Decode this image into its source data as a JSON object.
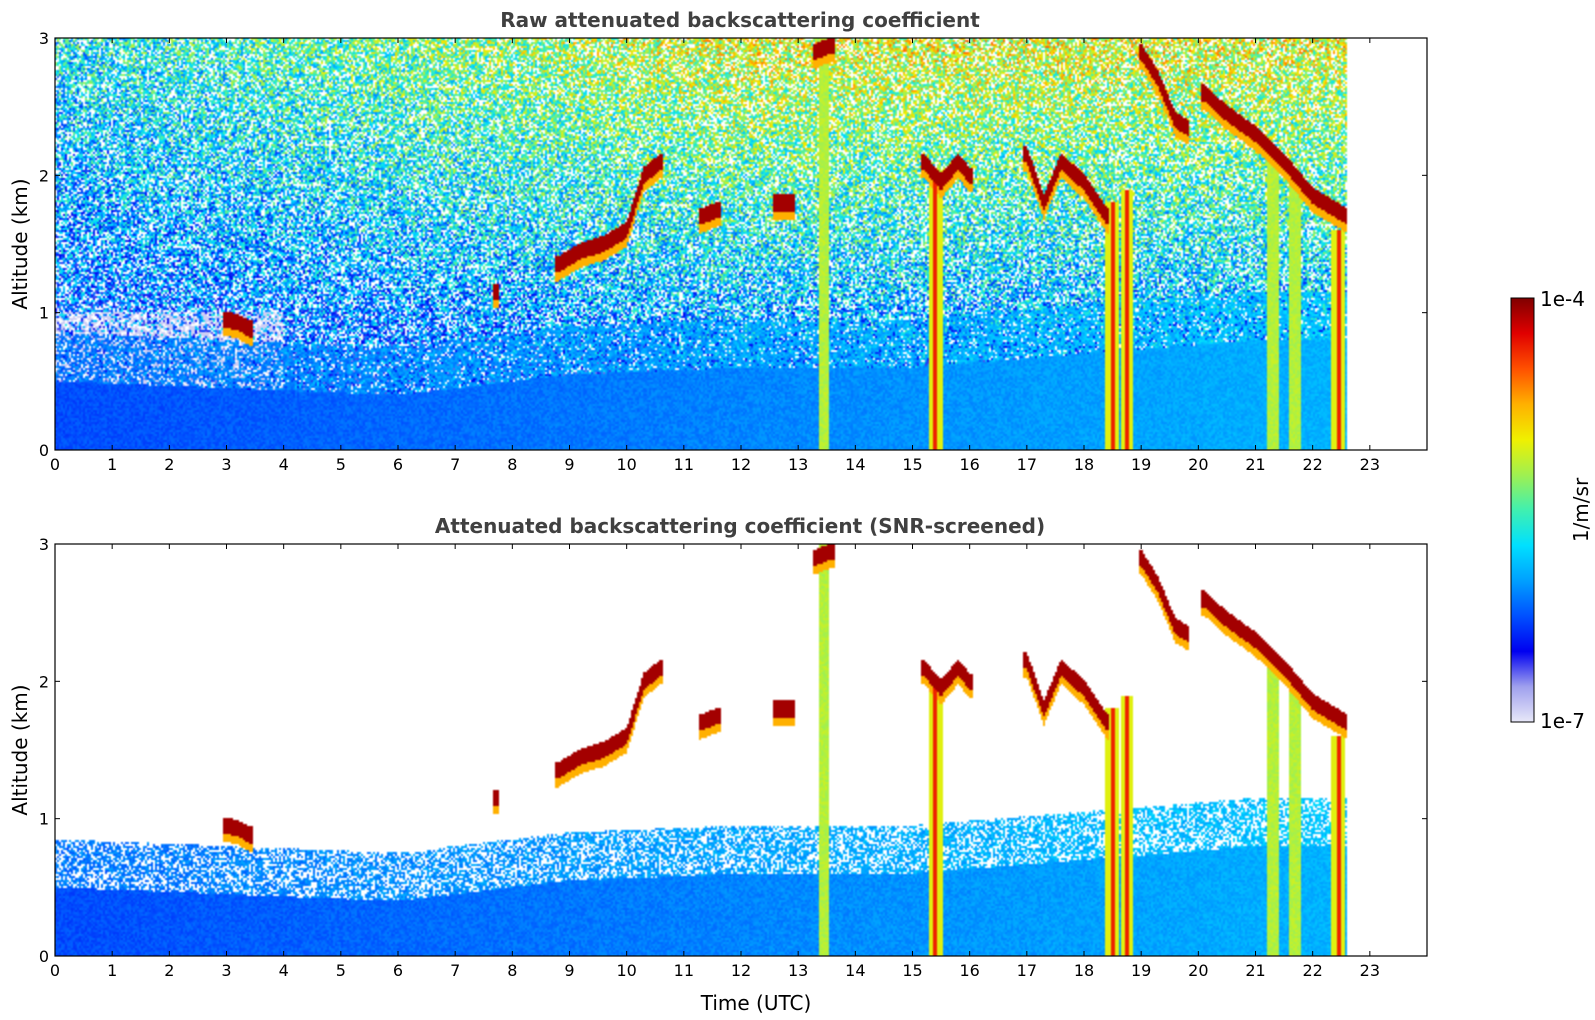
{
  "chart_data": [
    {
      "type": "heatmap",
      "title": "Raw attenuated backscattering coefficient",
      "xlabel": "",
      "ylabel": "Altitude (km)",
      "xlim": [
        0,
        24
      ],
      "ylim": [
        0,
        3
      ],
      "xticks": [
        "0",
        "1",
        "2",
        "3",
        "4",
        "5",
        "6",
        "7",
        "8",
        "9",
        "10",
        "11",
        "12",
        "13",
        "14",
        "15",
        "16",
        "17",
        "18",
        "19",
        "20",
        "21",
        "22",
        "23"
      ],
      "yticks": [
        "0",
        "1",
        "2",
        "3"
      ],
      "data_end_time": 22.6,
      "features": [
        {
          "kind": "boundary_layer",
          "times": [
            0,
            3,
            6,
            7,
            9,
            12,
            15,
            18,
            21,
            22.6
          ],
          "top_km": [
            0.5,
            0.45,
            0.4,
            0.45,
            0.55,
            0.6,
            0.6,
            0.7,
            0.8,
            0.8
          ]
        },
        {
          "kind": "cloud_layer",
          "times": [
            3.0,
            3.2,
            3.4
          ],
          "alt_km": [
            0.95,
            0.93,
            0.88
          ]
        },
        {
          "kind": "cloud_layer",
          "times": [
            7.7
          ],
          "alt_km": [
            1.15
          ]
        },
        {
          "kind": "cloud_layer",
          "times": [
            8.8,
            9.2,
            9.6,
            10.0,
            10.3,
            10.6
          ],
          "alt_km": [
            1.35,
            1.45,
            1.5,
            1.6,
            2.0,
            2.1
          ]
        },
        {
          "kind": "cloud_layer",
          "times": [
            11.3,
            11.6
          ],
          "alt_km": [
            1.7,
            1.75
          ]
        },
        {
          "kind": "cloud_layer",
          "times": [
            12.6,
            12.9
          ],
          "alt_km": [
            1.8,
            1.8
          ]
        },
        {
          "kind": "cloud_layer",
          "times": [
            13.3,
            13.6
          ],
          "alt_km": [
            2.9,
            2.95
          ]
        },
        {
          "kind": "cloud_layer",
          "times": [
            15.2,
            15.5,
            15.8,
            16.0
          ],
          "alt_km": [
            2.1,
            1.95,
            2.1,
            2.0
          ]
        },
        {
          "kind": "cloud_layer",
          "times": [
            17.0,
            17.3,
            17.6,
            18.0,
            18.4
          ],
          "alt_km": [
            2.15,
            1.8,
            2.1,
            1.95,
            1.7
          ]
        },
        {
          "kind": "cloud_layer",
          "times": [
            19.0,
            19.3,
            19.6,
            19.8
          ],
          "alt_km": [
            2.9,
            2.7,
            2.4,
            2.35
          ]
        },
        {
          "kind": "cloud_layer",
          "times": [
            20.1,
            20.5,
            21.0,
            21.5,
            22.0,
            22.6
          ],
          "alt_km": [
            2.6,
            2.45,
            2.3,
            2.1,
            1.85,
            1.7
          ]
        },
        {
          "kind": "precipitation_streak",
          "time": 15.4,
          "top_km": 2.0
        },
        {
          "kind": "precipitation_streak",
          "time": 18.5,
          "top_km": 1.8
        },
        {
          "kind": "precipitation_streak",
          "time": 18.75,
          "top_km": 1.9
        },
        {
          "kind": "precipitation_streak",
          "time": 22.45,
          "top_km": 1.6
        },
        {
          "kind": "aerosol_plume",
          "time": 13.45,
          "top_km": 3.0
        },
        {
          "kind": "aerosol_plume",
          "time": 21.3,
          "top_km": 2.2
        },
        {
          "kind": "aerosol_plume",
          "time": 21.7,
          "top_km": 2.0
        }
      ]
    },
    {
      "type": "heatmap",
      "title": "Attenuated backscattering coefficient (SNR-screened)",
      "xlabel": "Time (UTC)",
      "ylabel": "Altitude (km)",
      "xlim": [
        0,
        24
      ],
      "ylim": [
        0,
        3
      ],
      "xticks": [
        "0",
        "1",
        "2",
        "3",
        "4",
        "5",
        "6",
        "7",
        "8",
        "9",
        "10",
        "11",
        "12",
        "13",
        "14",
        "15",
        "16",
        "17",
        "18",
        "19",
        "20",
        "21",
        "22",
        "23"
      ],
      "yticks": [
        "0",
        "1",
        "2",
        "3"
      ],
      "data_end_time": 22.6,
      "screening": "low-SNR pixels removed (white)"
    }
  ],
  "colorbar": {
    "label": "1/m/sr",
    "max_label": "1e-4",
    "min_label": "1e-7",
    "scale": "log",
    "range": [
      1e-07,
      0.0001
    ],
    "colormap": [
      "#e8e8f8",
      "#9fa0ee",
      "#0000f0",
      "#0050ff",
      "#00a0ff",
      "#00e0ff",
      "#40f0b0",
      "#a0f050",
      "#f0f000",
      "#ffb000",
      "#ff5000",
      "#e00000",
      "#800000"
    ]
  }
}
